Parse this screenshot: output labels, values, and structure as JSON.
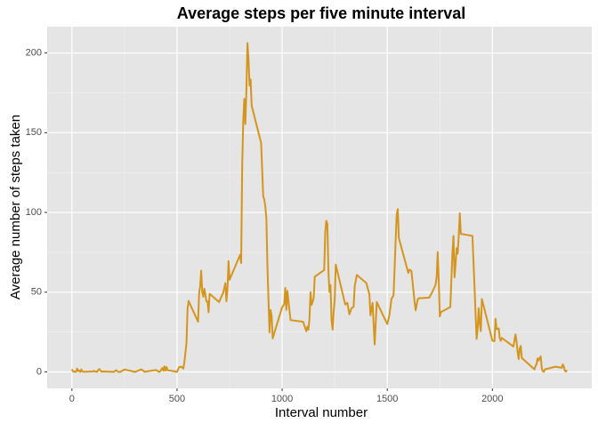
{
  "chart_data": {
    "type": "line",
    "title": "Average steps per five minute interval",
    "x_label": "Interval number",
    "y_label": "Average number of steps taken",
    "x": [
      0,
      5,
      10,
      15,
      20,
      25,
      30,
      35,
      40,
      45,
      50,
      55,
      100,
      105,
      110,
      115,
      120,
      125,
      130,
      140,
      150,
      200,
      210,
      220,
      230,
      250,
      300,
      330,
      345,
      400,
      415,
      420,
      430,
      435,
      440,
      445,
      450,
      455,
      500,
      505,
      510,
      520,
      530,
      535,
      545,
      550,
      555,
      600,
      605,
      610,
      615,
      620,
      625,
      630,
      640,
      645,
      650,
      655,
      700,
      720,
      730,
      735,
      740,
      745,
      750,
      800,
      805,
      810,
      815,
      820,
      825,
      830,
      835,
      840,
      845,
      850,
      855,
      900,
      910,
      915,
      920,
      925,
      930,
      935,
      940,
      945,
      950,
      955,
      1000,
      1010,
      1015,
      1020,
      1025,
      1030,
      1040,
      1100,
      1115,
      1120,
      1125,
      1130,
      1135,
      1140,
      1150,
      1155,
      1200,
      1205,
      1210,
      1215,
      1220,
      1225,
      1230,
      1235,
      1240,
      1245,
      1250,
      1255,
      1300,
      1310,
      1320,
      1330,
      1340,
      1345,
      1355,
      1400,
      1415,
      1420,
      1430,
      1440,
      1450,
      1500,
      1510,
      1520,
      1530,
      1535,
      1540,
      1545,
      1550,
      1555,
      1600,
      1605,
      1615,
      1620,
      1630,
      1635,
      1645,
      1650,
      1700,
      1715,
      1730,
      1735,
      1740,
      1745,
      1750,
      1755,
      1800,
      1805,
      1810,
      1815,
      1820,
      1825,
      1830,
      1835,
      1840,
      1845,
      1850,
      1905,
      1915,
      1920,
      1925,
      1930,
      1935,
      1940,
      1945,
      1950,
      2000,
      2010,
      2015,
      2020,
      2030,
      2035,
      2040,
      2045,
      2100,
      2110,
      2115,
      2120,
      2125,
      2130,
      2135,
      2140,
      2200,
      2205,
      2210,
      2215,
      2220,
      2225,
      2230,
      2235,
      2240,
      2245,
      2250,
      2300,
      2330,
      2335,
      2340,
      2345,
      2350,
      2355
    ],
    "series": [
      {
        "color": "#d4951f",
        "values": [
          1.7,
          0.3,
          0.1,
          0.2,
          0.1,
          2.1,
          0.5,
          0.9,
          0,
          1.5,
          0.3,
          0.1,
          0.3,
          0.7,
          0.2,
          0.3,
          0,
          1.1,
          1.8,
          0.2,
          0.3,
          0,
          1.1,
          0,
          0,
          1.5,
          0,
          1.6,
          0.1,
          1.2,
          0,
          0.3,
          2.5,
          0.7,
          3.5,
          0.8,
          3.1,
          1.1,
          0,
          1.6,
          3,
          3.3,
          2.1,
          6.1,
          18.3,
          39.5,
          44.5,
          31.5,
          49.3,
          53.8,
          63.5,
          50,
          47.1,
          52.2,
          44.1,
          44.2,
          37.4,
          49,
          43.8,
          49.9,
          55.7,
          44.3,
          52.3,
          69.5,
          57.8,
          73.4,
          68.2,
          129.4,
          157.5,
          171.2,
          155.4,
          177.3,
          206.2,
          195.9,
          179.6,
          183.4,
          167,
          143.5,
          110,
          108.1,
          103.7,
          95.9,
          66.2,
          45.2,
          24.8,
          38.8,
          35,
          21.1,
          40.6,
          42.4,
          52.7,
          38.9,
          50.8,
          44.3,
          32.5,
          31.4,
          25.5,
          28.4,
          26.5,
          33.4,
          50,
          42,
          46.2,
          59.7,
          63.9,
          87.7,
          94.8,
          92.8,
          63.4,
          50.2,
          54.5,
          32.4,
          26.5,
          37.7,
          45.1,
          67.3,
          42.3,
          43.3,
          36.1,
          40,
          40.8,
          53.5,
          60.8,
          55.8,
          48.7,
          35.5,
          43.3,
          17.2,
          43.8,
          30,
          35.5,
          45.7,
          48.1,
          65.3,
          82.9,
          98.7,
          102.1,
          84,
          62.1,
          64.1,
          63.2,
          56.9,
          43.9,
          38.6,
          45.5,
          46.2,
          46.6,
          50.3,
          54.7,
          59.6,
          75.1,
          56.5,
          34.8,
          37.5,
          40.7,
          58,
          74.7,
          85.3,
          59.3,
          67.8,
          77.7,
          74.2,
          85.3,
          99.5,
          86.6,
          85.3,
          53.4,
          36.3,
          20.7,
          27.4,
          40,
          30.2,
          25.5,
          45.7,
          19.6,
          19.3,
          33.3,
          26.8,
          27.3,
          21.3,
          19.5,
          21.3,
          15.9,
          23.5,
          19.2,
          12.5,
          8,
          14.7,
          16.3,
          8.7,
          1.6,
          3.7,
          4.8,
          8.5,
          7.1,
          8.7,
          9.8,
          2.2,
          0.3,
          0.1,
          1.6,
          3.3,
          2.6,
          4.7,
          3.3,
          0.6,
          0.2,
          1.1
        ]
      }
    ],
    "xlim": [
      -117.75,
      2472.75
    ],
    "xticks": [
      0,
      500,
      1000,
      1500,
      2000
    ],
    "ylim": [
      -10.3,
      216.5
    ],
    "yticks": [
      0,
      50,
      100,
      150,
      200
    ],
    "grid": true
  }
}
